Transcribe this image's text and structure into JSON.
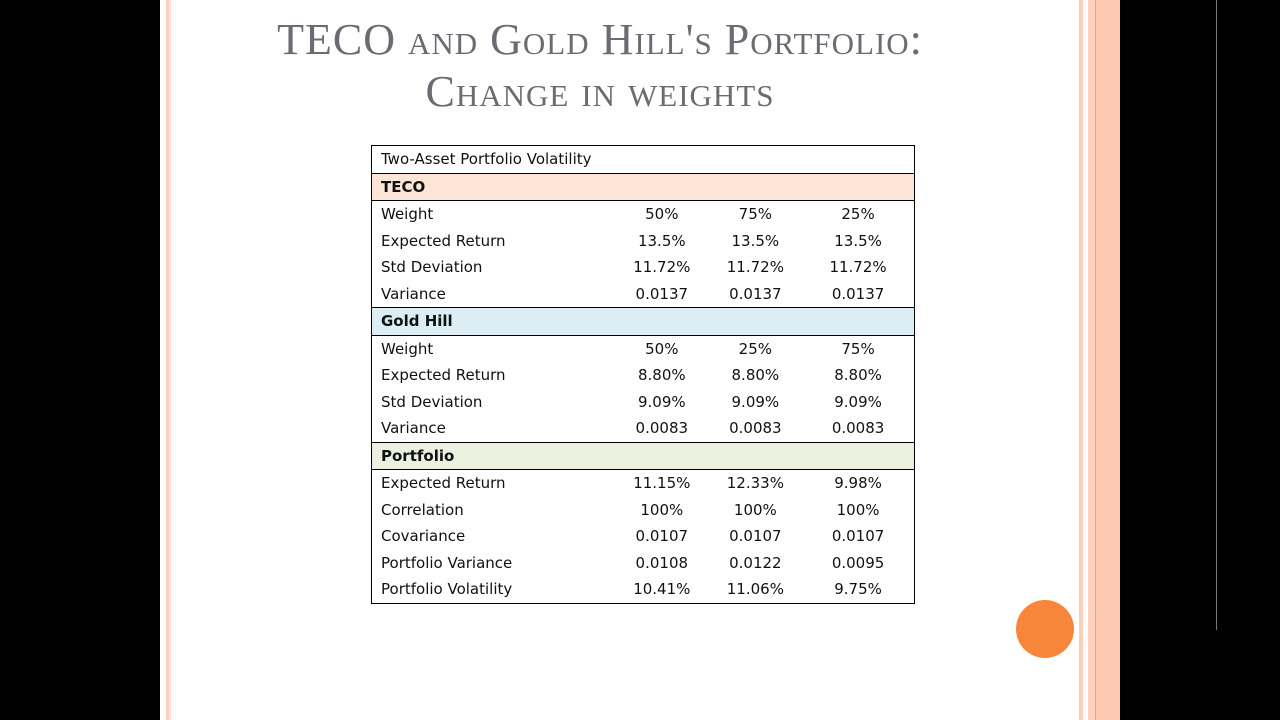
{
  "title_line1": "TECO and Gold Hill's Portfolio:",
  "title_line2": "Change in weights",
  "table": {
    "caption": "Two-Asset Portfolio Volatility",
    "sections": [
      {
        "name": "TECO",
        "color": "#fce4d6",
        "rows": [
          {
            "label": "Weight",
            "values": [
              "50%",
              "75%",
              "25%"
            ]
          },
          {
            "label": "Expected Return",
            "values": [
              "13.5%",
              "13.5%",
              "13.5%"
            ]
          },
          {
            "label": "Std Deviation",
            "values": [
              "11.72%",
              "11.72%",
              "11.72%"
            ]
          },
          {
            "label": "Variance",
            "values": [
              "0.0137",
              "0.0137",
              "0.0137"
            ]
          }
        ]
      },
      {
        "name": "Gold Hill",
        "color": "#daeef3",
        "rows": [
          {
            "label": "Weight",
            "values": [
              "50%",
              "25%",
              "75%"
            ]
          },
          {
            "label": "Expected Return",
            "values": [
              "8.80%",
              "8.80%",
              "8.80%"
            ]
          },
          {
            "label": "Std Deviation",
            "values": [
              "9.09%",
              "9.09%",
              "9.09%"
            ]
          },
          {
            "label": "Variance",
            "values": [
              "0.0083",
              "0.0083",
              "0.0083"
            ]
          }
        ]
      },
      {
        "name": "Portfolio",
        "color": "#ebf1de",
        "rows": [
          {
            "label": "Expected Return",
            "values": [
              "11.15%",
              "12.33%",
              "9.98%"
            ]
          },
          {
            "label": "Correlation",
            "values": [
              "100%",
              "100%",
              "100%"
            ]
          },
          {
            "label": "Covariance",
            "values": [
              "0.0107",
              "0.0107",
              "0.0107"
            ]
          },
          {
            "label": "Portfolio Variance",
            "values": [
              "0.0108",
              "0.0122",
              "0.0095"
            ]
          },
          {
            "label": "Portfolio Volatility",
            "values": [
              "10.41%",
              "11.06%",
              "9.75%"
            ]
          }
        ]
      }
    ]
  },
  "accent": "#f7863b"
}
